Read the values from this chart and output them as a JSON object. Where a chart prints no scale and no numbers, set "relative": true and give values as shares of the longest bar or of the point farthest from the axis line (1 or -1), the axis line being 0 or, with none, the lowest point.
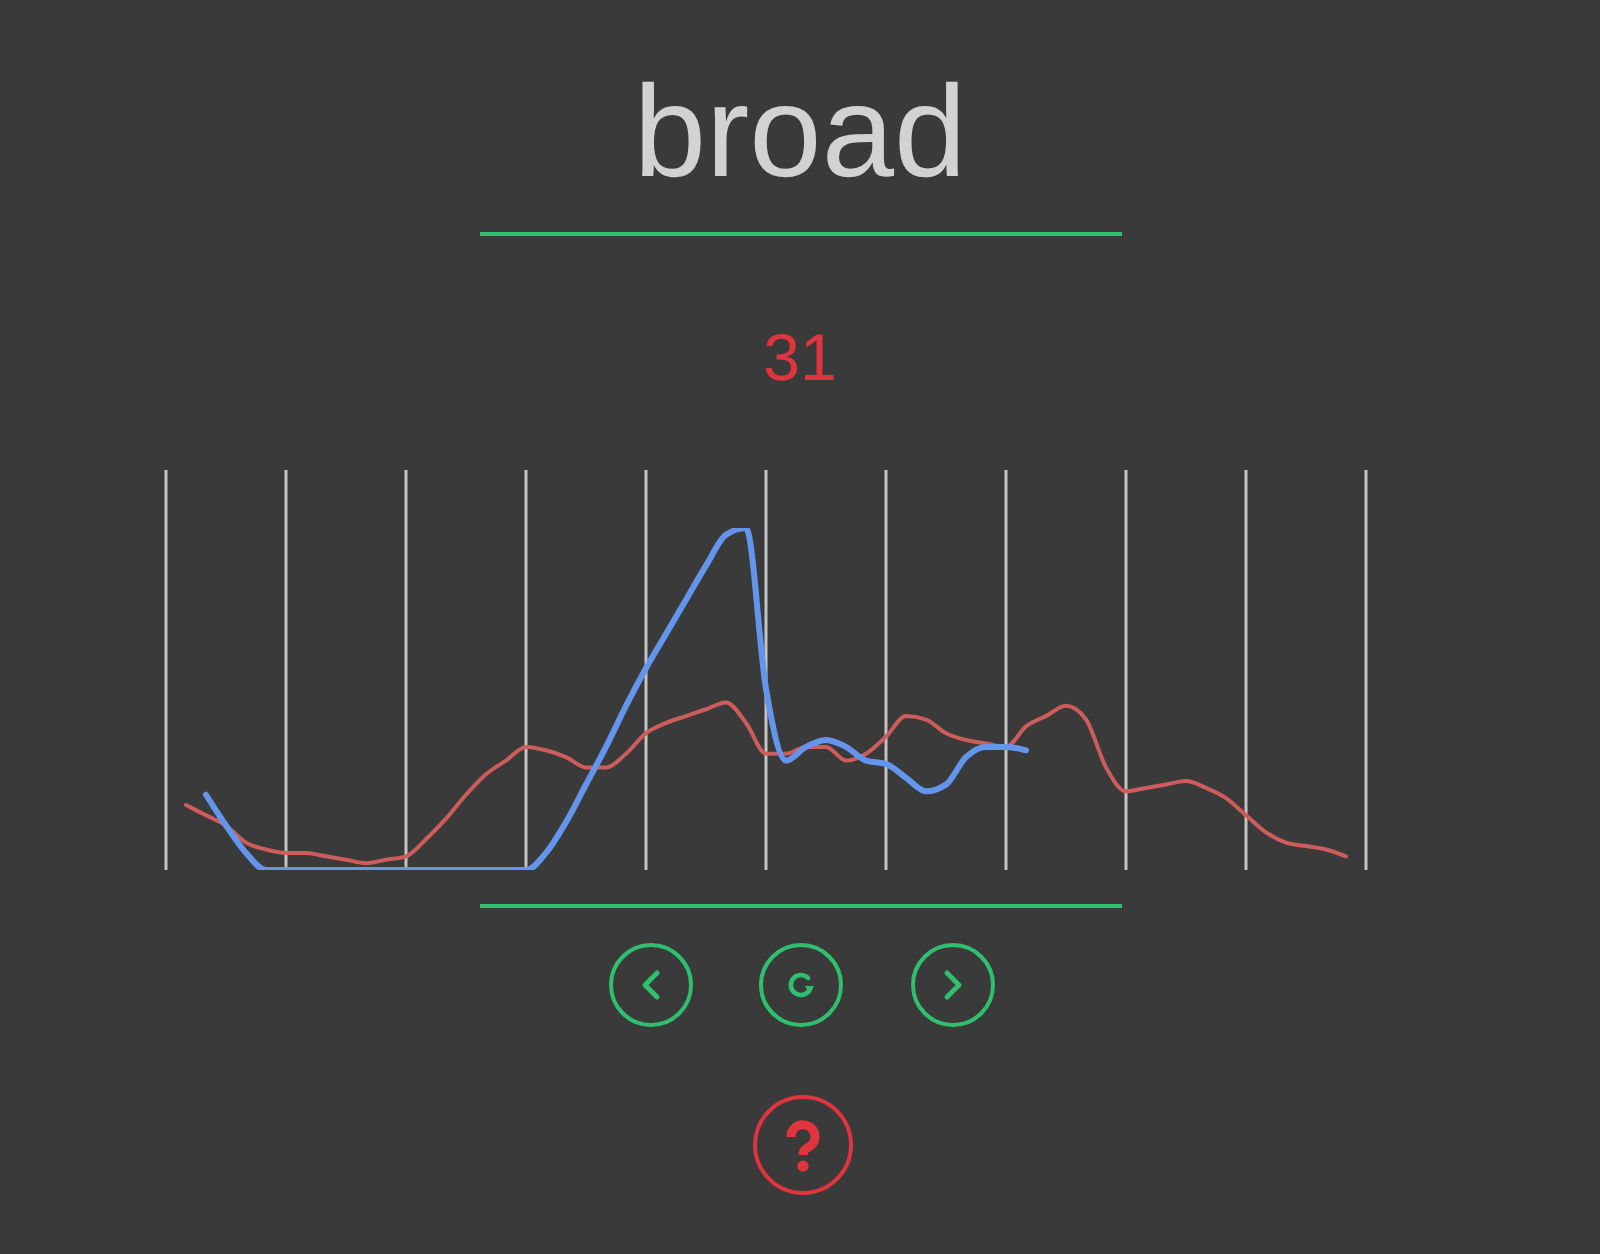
{
  "chart_data": {
    "type": "line",
    "title": "broad",
    "annotations": [
      "31"
    ],
    "relative": true,
    "categories": [
      null,
      null,
      null,
      null,
      null,
      null,
      null,
      null,
      null,
      null,
      null,
      null,
      null,
      null,
      null,
      null,
      null,
      null,
      null,
      null,
      null,
      null,
      null,
      null,
      null,
      null,
      null,
      null,
      null,
      null,
      null,
      null,
      null,
      null,
      null,
      null,
      null,
      null,
      null,
      null,
      null,
      null,
      null,
      null,
      null,
      null,
      null,
      null,
      null,
      null,
      null,
      null,
      null,
      null,
      null,
      null,
      null,
      null,
      null,
      null,
      null
    ],
    "grid": "x",
    "marker": "none",
    "series": [
      {
        "color": "#cd5c5c",
        "values": [
          null,
          0.19,
          0.16,
          0.13,
          0.08,
          0.06,
          0.05,
          0.05,
          0.04,
          0.03,
          0.02,
          0.03,
          0.04,
          0.09,
          0.15,
          0.22,
          0.28,
          0.32,
          0.36,
          0.35,
          0.33,
          0.3,
          0.3,
          0.34,
          0.4,
          0.43,
          0.45,
          0.47,
          0.49,
          0.43,
          0.34,
          0.34,
          0.36,
          0.36,
          0.32,
          0.34,
          0.39,
          0.45,
          0.44,
          0.4,
          0.38,
          0.37,
          0.36,
          0.42,
          0.45,
          0.48,
          0.44,
          0.3,
          0.23,
          0.24,
          0.25,
          0.26,
          0.24,
          0.21,
          0.16,
          0.11,
          0.08,
          0.07,
          0.06,
          0.04,
          null
        ]
      },
      {
        "color": "#6495ed",
        "values": [
          null,
          null,
          0.22,
          0.13,
          0.05,
          0.0,
          0.0,
          0.0,
          0.0,
          0.0,
          0.0,
          0.0,
          0.0,
          0.0,
          0.0,
          0.0,
          0.0,
          0.0,
          0.0,
          0.05,
          0.14,
          0.25,
          0.36,
          0.48,
          0.59,
          0.69,
          0.79,
          0.89,
          0.98,
          1.0,
          0.53,
          0.32,
          0.36,
          0.38,
          0.36,
          0.32,
          0.31,
          0.27,
          0.23,
          0.25,
          0.33,
          0.36,
          0.36,
          0.35,
          null,
          null,
          null,
          null,
          null,
          null,
          null,
          null,
          null,
          null,
          null,
          null,
          null,
          null,
          null,
          null,
          null
        ]
      }
    ]
  }
}
